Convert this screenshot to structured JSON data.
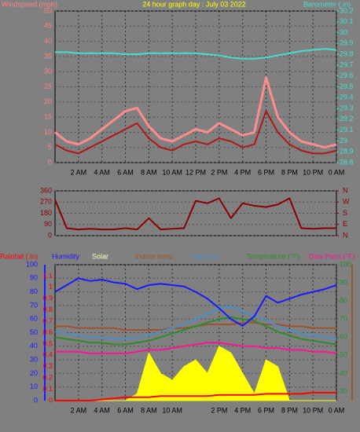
{
  "chart_data": [
    {
      "type": "line",
      "title": "24 hour graph day : July 03 2022",
      "ylabel": "Windspeed (mph)",
      "y2label": "Barometer (.in)",
      "ylabel_color": "#ff8080",
      "y2label_color": "#40e0d0",
      "x": [
        0,
        1,
        2,
        3,
        4,
        5,
        6,
        7,
        8,
        9,
        10,
        11,
        12,
        13,
        14,
        15,
        16,
        17,
        18,
        19,
        20,
        21,
        22,
        23,
        24
      ],
      "xlim": [
        0,
        24
      ],
      "xticks": [
        {
          "value": 2,
          "label": "2 AM"
        },
        {
          "value": 4,
          "label": "4 AM"
        },
        {
          "value": 6,
          "label": "6 AM"
        },
        {
          "value": 8,
          "label": "8 AM"
        },
        {
          "value": 10,
          "label": "10 AM"
        },
        {
          "value": 12,
          "label": "12 PM"
        },
        {
          "value": 14,
          "label": "2 PM"
        },
        {
          "value": 16,
          "label": "4 PM"
        },
        {
          "value": 18,
          "label": "6 PM"
        },
        {
          "value": 20,
          "label": "8 PM"
        },
        {
          "value": 22,
          "label": "10 PM"
        },
        {
          "value": 24,
          "label": "0 AM"
        }
      ],
      "ylim": [
        0,
        50
      ],
      "yticks": [
        0,
        5,
        10,
        15,
        20,
        25,
        30,
        35,
        40,
        45,
        50
      ],
      "y2lim": [
        28.8,
        30.2
      ],
      "y2ticks": [
        28.8,
        28.9,
        29,
        29.1,
        29.2,
        29.3,
        29.4,
        29.5,
        29.6,
        29.7,
        29.8,
        29.9,
        30,
        30.1,
        30.2
      ],
      "grid": true,
      "series": [
        {
          "color": "#ff8c8c",
          "width": 3,
          "values": [
            10,
            7,
            6,
            8,
            11,
            14,
            17,
            18,
            12,
            8,
            7,
            9,
            11,
            10,
            13,
            11,
            9,
            10,
            28,
            15,
            10,
            7,
            6,
            5,
            6
          ]
        },
        {
          "color": "#b01818",
          "width": 2,
          "values": [
            6,
            4,
            3,
            5,
            7,
            9,
            11,
            13,
            8,
            5,
            4,
            6,
            7,
            6,
            8,
            7,
            5,
            6,
            17,
            10,
            6,
            4,
            3,
            3,
            4
          ]
        },
        {
          "color": "#40e0d0",
          "width": 2,
          "axis": "y2",
          "values": [
            29.82,
            29.82,
            29.81,
            29.81,
            29.81,
            29.81,
            29.8,
            29.8,
            29.81,
            29.81,
            29.81,
            29.81,
            29.81,
            29.8,
            29.79,
            29.77,
            29.76,
            29.76,
            29.77,
            29.79,
            29.81,
            29.83,
            29.84,
            29.85,
            29.84
          ]
        }
      ]
    },
    {
      "type": "line",
      "x": [
        0,
        1,
        2,
        3,
        4,
        5,
        6,
        7,
        8,
        9,
        10,
        11,
        12,
        13,
        14,
        15,
        16,
        17,
        18,
        19,
        20,
        21,
        22,
        23,
        24
      ],
      "xlim": [
        0,
        24
      ],
      "ylim": [
        0,
        360
      ],
      "yticks": [
        0,
        90,
        180,
        270,
        360
      ],
      "y2lim": [
        0,
        360
      ],
      "y2ticks": [
        {
          "value": 0,
          "label": "N"
        },
        {
          "value": 90,
          "label": "E"
        },
        {
          "value": 180,
          "label": "S"
        },
        {
          "value": 270,
          "label": "W"
        },
        {
          "value": 360,
          "label": "N"
        }
      ],
      "grid": true,
      "series": [
        {
          "color": "#8b0000",
          "width": 2,
          "values": [
            290,
            60,
            50,
            55,
            50,
            50,
            60,
            50,
            140,
            50,
            55,
            60,
            280,
            260,
            300,
            140,
            260,
            240,
            230,
            250,
            300,
            60,
            55,
            60,
            60
          ]
        }
      ]
    },
    {
      "type": "line",
      "x": [
        0,
        1,
        2,
        3,
        4,
        5,
        6,
        7,
        8,
        9,
        10,
        11,
        12,
        13,
        14,
        15,
        16,
        17,
        18,
        19,
        20,
        21,
        22,
        23,
        24
      ],
      "xlim": [
        0,
        24
      ],
      "xticks": [
        {
          "value": 2,
          "label": "2 AM"
        },
        {
          "value": 4,
          "label": "4 AM"
        },
        {
          "value": 6,
          "label": "6 AM"
        },
        {
          "value": 8,
          "label": "8 AM"
        },
        {
          "value": 10,
          "label": "10 AM"
        },
        {
          "value": 14,
          "label": "2 PM"
        },
        {
          "value": 16,
          "label": "4 PM"
        },
        {
          "value": 18,
          "label": "6 PM"
        },
        {
          "value": 20,
          "label": "8 PM"
        },
        {
          "value": 22,
          "label": "10 PM"
        },
        {
          "value": 24,
          "label": "0 AM"
        }
      ],
      "ylim": [
        0,
        100
      ],
      "yticks": [
        0,
        10,
        20,
        30,
        40,
        50,
        60,
        70,
        80,
        90,
        100
      ],
      "rainlim": [
        0,
        1.2
      ],
      "rainticks": [
        0,
        0.1,
        0.2,
        0.3,
        0.4,
        0.5,
        0.6,
        0.7,
        0.8,
        0.9,
        1,
        1.1
      ],
      "y2lim": [
        25,
        100
      ],
      "y2ticks": [
        30,
        40,
        50,
        60,
        70,
        80,
        90,
        100
      ],
      "grid": true,
      "series": [
        {
          "name": "Solar",
          "color": "#ffff00",
          "fill": true,
          "values": [
            0,
            0,
            0,
            0,
            0,
            0,
            0,
            5,
            35,
            20,
            15,
            25,
            30,
            20,
            40,
            35,
            20,
            5,
            30,
            25,
            0,
            0,
            0,
            0,
            0
          ]
        },
        {
          "name": "Indoor temp",
          "color": "#a0522d",
          "width": 2,
          "axis": "y2",
          "values": [
            66,
            66,
            65,
            65,
            65,
            65,
            64,
            64,
            64,
            64,
            65,
            65,
            66,
            67,
            67,
            67,
            68,
            68,
            67,
            67,
            66,
            66,
            65,
            65,
            65
          ]
        },
        {
          "name": "Humidex",
          "color": "#4a90c8",
          "width": 2,
          "axis": "y2",
          "values": [
            63,
            62,
            61,
            60,
            60,
            59,
            59,
            60,
            61,
            63,
            65,
            67,
            70,
            73,
            76,
            77,
            74,
            72,
            69,
            66,
            64,
            62,
            61,
            60,
            59
          ]
        },
        {
          "name": "Temperature (°F)",
          "color": "#2e8b2e",
          "width": 2,
          "axis": "y2",
          "values": [
            60,
            59,
            58,
            57,
            57,
            56,
            56,
            57,
            58,
            60,
            62,
            64,
            66,
            68,
            70,
            71,
            70,
            69,
            66,
            63,
            61,
            59,
            58,
            57,
            56
          ]
        },
        {
          "name": "Dew Point (°F)",
          "color": "#ff1493",
          "width": 2,
          "axis": "y2",
          "values": [
            52,
            52,
            52,
            51,
            51,
            51,
            51,
            52,
            53,
            53,
            54,
            55,
            56,
            57,
            57,
            56,
            55,
            55,
            54,
            54,
            53,
            53,
            52,
            52,
            51
          ]
        },
        {
          "name": "Humidity",
          "color": "#1a1aff",
          "width": 2,
          "values": [
            80,
            85,
            90,
            88,
            89,
            87,
            86,
            82,
            85,
            86,
            85,
            84,
            80,
            75,
            68,
            60,
            55,
            62,
            77,
            72,
            75,
            78,
            80,
            82,
            85
          ]
        },
        {
          "name": "Rainfall (.in)",
          "color": "#ff0000",
          "width": 2,
          "axis": "rain",
          "values": [
            0,
            0,
            0,
            0,
            0.01,
            0.02,
            0.03,
            0.03,
            0.03,
            0.04,
            0.04,
            0.04,
            0.04,
            0.04,
            0.05,
            0.05,
            0.05,
            0.05,
            0.06,
            0.06,
            0.06,
            0.06,
            0.07,
            0.07,
            0.07
          ]
        }
      ]
    }
  ]
}
